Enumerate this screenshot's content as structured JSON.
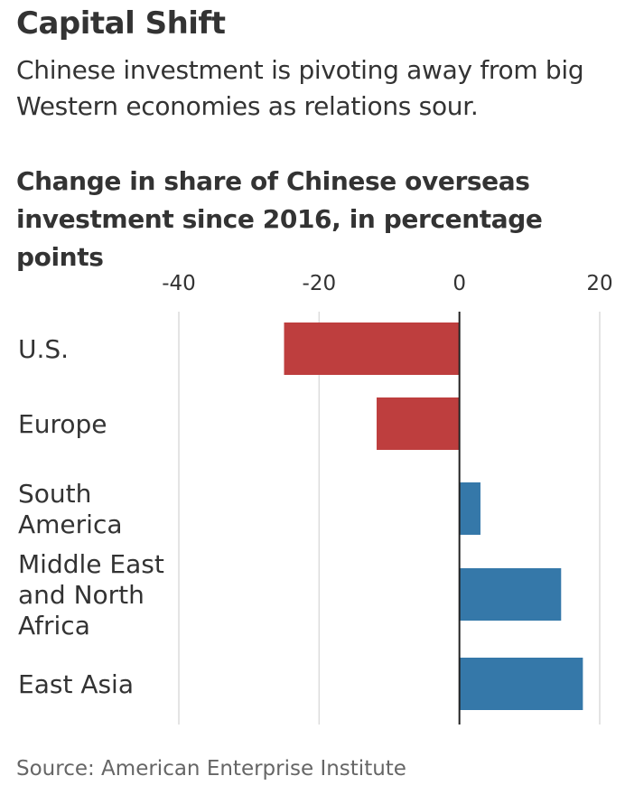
{
  "headline": "Capital Shift",
  "dek": "Chinese investment is pivoting away from big Western economies as relations sour.",
  "source": "Source: American Enterprise Institute",
  "colors": {
    "negative": "#be3e3e",
    "positive": "#3578a9",
    "gridline": "#dcdcdc",
    "axis": "#222222"
  },
  "chart_data": {
    "type": "bar",
    "orientation": "horizontal",
    "title": "Change in share of Chinese overseas investment since 2016, in percentage points",
    "categories": [
      {
        "lines": [
          "U.S."
        ]
      },
      {
        "lines": [
          "Europe"
        ]
      },
      {
        "lines": [
          "South",
          "America"
        ]
      },
      {
        "lines": [
          "Middle East",
          "and North",
          "Africa"
        ]
      },
      {
        "lines": [
          "East Asia"
        ]
      }
    ],
    "values": [
      -25,
      -11.8,
      3,
      14.5,
      17.6
    ],
    "xlim": [
      -40,
      20
    ],
    "xticks": [
      -40,
      -20,
      0,
      20
    ],
    "xtick_labels": [
      "-40",
      "-20",
      "0",
      "20"
    ],
    "grid": true,
    "axis_position": "top"
  }
}
